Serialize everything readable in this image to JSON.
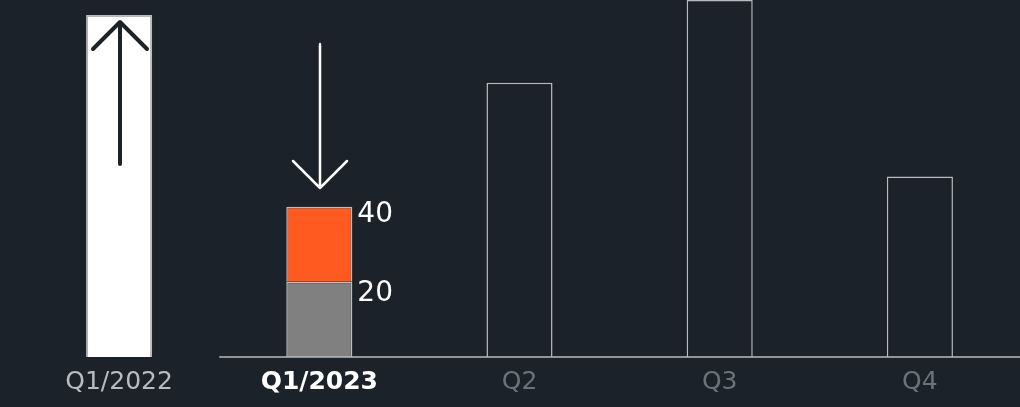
{
  "chart_data": {
    "type": "bar",
    "categories": [
      "Q1/2022",
      "Q1/2023",
      "Q2",
      "Q3",
      "Q4"
    ],
    "stacked": true,
    "series": [
      {
        "colors": [
          "#ffffff",
          "#808080",
          "#1b2229",
          "#1b2229",
          "#1b2229"
        ],
        "values": [
          91,
          20,
          73,
          95,
          48
        ],
        "value_labels": [
          null,
          "20",
          null,
          null,
          null
        ]
      },
      {
        "color": "#ff5a1f",
        "values": [
          null,
          20,
          null,
          null,
          null
        ]
      }
    ],
    "totals": [
      null,
      "40",
      null,
      null,
      null
    ],
    "legend": false,
    "tick_labels": "x"
  }
}
